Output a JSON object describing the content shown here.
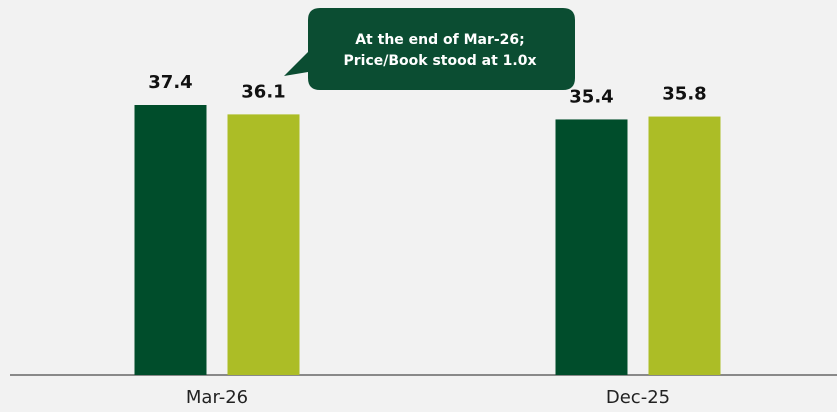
{
  "chart_data": {
    "type": "bar",
    "categories": [
      "Mar-26",
      "Dec-25"
    ],
    "series": [
      {
        "color": "#004d2b",
        "values": [
          37.4,
          35.4
        ]
      },
      {
        "color": "#acbd26",
        "values": [
          36.1,
          35.8
        ]
      }
    ],
    "annotation": [
      "At the end of Mar-26;",
      "Price/Book stood at 1.0x"
    ],
    "annotation_color": "#0b4d32"
  }
}
